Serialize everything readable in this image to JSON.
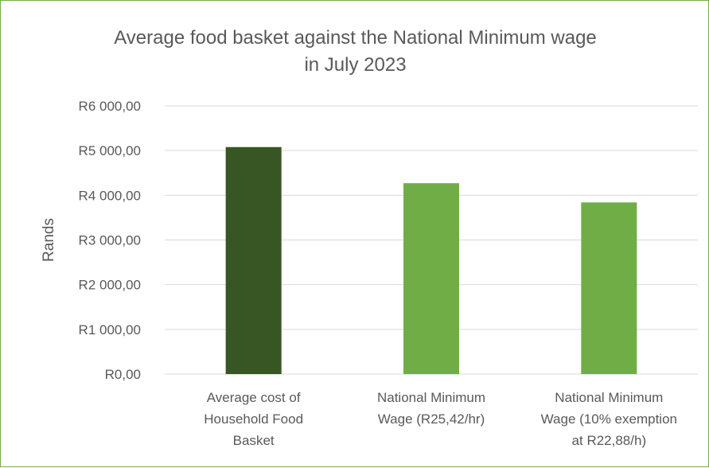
{
  "chart_data": {
    "type": "bar",
    "title_lines": [
      "Average food basket against the National Minimum wage",
      "in July 2023"
    ],
    "ylabel": "Rands",
    "xlabel": "",
    "ylim": [
      0,
      6000
    ],
    "yticks": [
      0,
      1000,
      2000,
      3000,
      4000,
      5000,
      6000
    ],
    "ytick_labels": [
      "R0,00",
      "R1 000,00",
      "R2 000,00",
      "R3 000,00",
      "R4 000,00",
      "R5 000,00",
      "R6 000,00"
    ],
    "categories": [
      [
        "Average cost of",
        "Household Food",
        "Basket"
      ],
      [
        "National Minimum",
        "Wage (R25,42/hr)"
      ],
      [
        "National Minimum",
        "Wage (10% exemption",
        "at R22,88/h)"
      ]
    ],
    "values": [
      5078,
      4270,
      3840
    ],
    "bar_colors": [
      "#375623",
      "#70ad47",
      "#70ad47"
    ],
    "grid": true,
    "legend": "none"
  },
  "colors": {
    "border": "#70ad47",
    "gridline": "#d9d9d9",
    "text": "#595959"
  }
}
